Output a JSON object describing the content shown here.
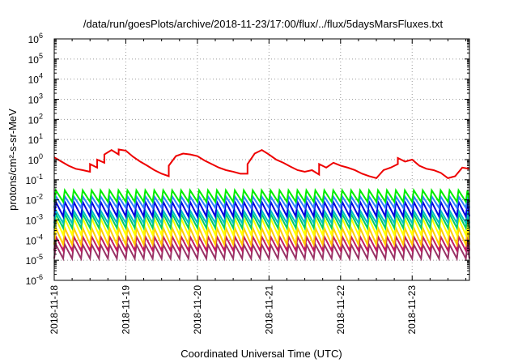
{
  "chart_data": {
    "type": "line",
    "title": "/data/run/goesPlots/archive/2018-11-23/17:00/flux/../flux/5daysMarsFluxes.txt",
    "xlabel": "Coordinated Universal Time (UTC)",
    "ylabel": "protons/cm²-s-sr-MeV",
    "y_scale": "log",
    "ylim": [
      1e-06,
      1000000.0
    ],
    "xlim": [
      0,
      5.8
    ],
    "grid": true,
    "legend": "none",
    "x_ticks": [
      {
        "pos": 0,
        "label": "2018-11-18"
      },
      {
        "pos": 1,
        "label": "2018-11-19"
      },
      {
        "pos": 2,
        "label": "2018-11-20"
      },
      {
        "pos": 3,
        "label": "2018-11-21"
      },
      {
        "pos": 4,
        "label": "2018-11-22"
      },
      {
        "pos": 5,
        "label": "2018-11-23"
      }
    ],
    "y_ticks": [
      {
        "exp": -6,
        "label": "10",
        "sup": "-6"
      },
      {
        "exp": -5,
        "label": "10",
        "sup": "-5"
      },
      {
        "exp": -4,
        "label": "10",
        "sup": "-4"
      },
      {
        "exp": -3,
        "label": "10",
        "sup": "-3"
      },
      {
        "exp": -2,
        "label": "10",
        "sup": "-2"
      },
      {
        "exp": -1,
        "label": "10",
        "sup": "-1"
      },
      {
        "exp": 0,
        "label": "10",
        "sup": "0"
      },
      {
        "exp": 1,
        "label": "10",
        "sup": "1"
      },
      {
        "exp": 2,
        "label": "10",
        "sup": "2"
      },
      {
        "exp": 3,
        "label": "10",
        "sup": "3"
      },
      {
        "exp": 4,
        "label": "10",
        "sup": "4"
      },
      {
        "exp": 5,
        "label": "10",
        "sup": "5"
      },
      {
        "exp": 6,
        "label": "10",
        "sup": "6"
      }
    ],
    "red_series": {
      "color": "#ee0000",
      "x": [
        0,
        0.1,
        0.2,
        0.3,
        0.4,
        0.5,
        0.5,
        0.6,
        0.6,
        0.7,
        0.7,
        0.8,
        0.9,
        0.9,
        1.0,
        1.1,
        1.2,
        1.3,
        1.4,
        1.5,
        1.6,
        1.6,
        1.7,
        1.8,
        1.9,
        2.0,
        2.1,
        2.2,
        2.3,
        2.4,
        2.5,
        2.6,
        2.7,
        2.7,
        2.8,
        2.9,
        3.0,
        3.1,
        3.2,
        3.3,
        3.4,
        3.5,
        3.6,
        3.7,
        3.7,
        3.8,
        3.9,
        4.0,
        4.1,
        4.2,
        4.3,
        4.4,
        4.5,
        4.6,
        4.7,
        4.8,
        4.8,
        4.9,
        5.0,
        5.1,
        5.2,
        5.3,
        5.4,
        5.5,
        5.6,
        5.7,
        5.8
      ],
      "y": [
        1.3,
        0.8,
        0.5,
        0.35,
        0.3,
        0.25,
        0.6,
        0.4,
        1.0,
        0.7,
        1.8,
        3.0,
        1.8,
        3.2,
        2.8,
        1.4,
        0.8,
        0.5,
        0.3,
        0.2,
        0.15,
        0.5,
        1.5,
        2.0,
        1.8,
        1.5,
        0.9,
        0.6,
        0.4,
        0.3,
        0.25,
        0.2,
        0.2,
        0.6,
        2.0,
        3.0,
        1.8,
        1.0,
        0.7,
        0.45,
        0.3,
        0.25,
        0.3,
        0.18,
        0.6,
        0.4,
        0.7,
        0.5,
        0.4,
        0.3,
        0.2,
        0.15,
        0.12,
        0.3,
        0.4,
        0.6,
        1.2,
        0.8,
        1.0,
        0.5,
        0.35,
        0.3,
        0.22,
        0.12,
        0.15,
        0.4,
        0.35
      ]
    },
    "periodic_series": [
      {
        "color": "#00ee00",
        "low": 0.008,
        "high": 0.03
      },
      {
        "color": "#2f7fff",
        "low": 0.004,
        "high": 0.015
      },
      {
        "color": "#0000dd",
        "low": 0.0015,
        "high": 0.008
      },
      {
        "color": "#00c0c0",
        "low": 0.0007,
        "high": 0.003
      },
      {
        "color": "#00cc66",
        "low": 0.0004,
        "high": 0.002
      },
      {
        "color": "#ffff00",
        "low": 0.00018,
        "high": 0.0012
      },
      {
        "color": "#ffcc00",
        "low": 6e-05,
        "high": 0.0004
      },
      {
        "color": "#c21a60",
        "low": 3e-05,
        "high": 0.00015
      },
      {
        "color": "#993366",
        "low": 1.2e-05,
        "high": 6e-05
      }
    ],
    "periodic_cycle_days": 0.125
  }
}
